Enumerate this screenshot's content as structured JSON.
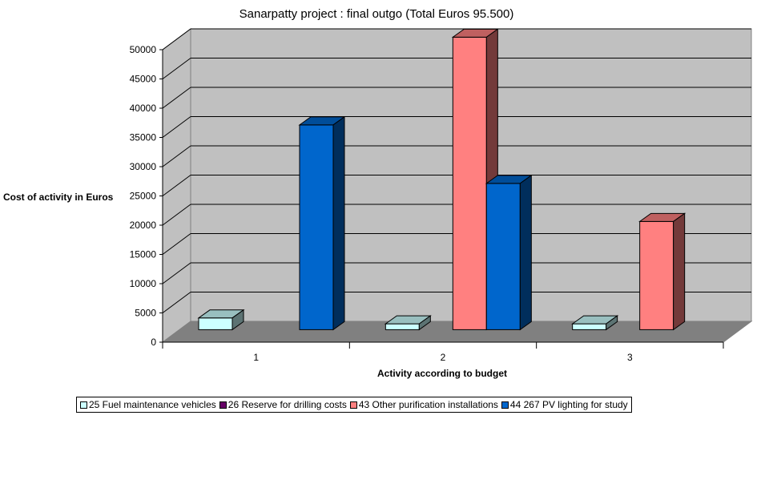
{
  "chart_data": {
    "type": "bar",
    "title": "Sanarpatty project : final outgo (Total Euros 95.500)",
    "xlabel": "Activity according to budget",
    "ylabel": "Cost of activity in Euros",
    "categories": [
      "1",
      "2",
      "3"
    ],
    "ylim": [
      0,
      50000
    ],
    "yticks": [
      0,
      5000,
      10000,
      15000,
      20000,
      25000,
      30000,
      35000,
      40000,
      45000,
      50000
    ],
    "grid": true,
    "legend_position": "bottom",
    "series": [
      {
        "name": "25 Fuel maintenance vehicles",
        "color": "#ccffff",
        "values": [
          2000,
          1000,
          1000
        ]
      },
      {
        "name": "26 Reserve for drilling costs",
        "color": "#660066",
        "values": [
          0,
          0,
          0
        ]
      },
      {
        "name": "43 Other purification installations",
        "color": "#ff8080",
        "values": [
          0,
          50000,
          18500
        ]
      },
      {
        "name": "44 267 PV lighting for study",
        "color": "#0066cc",
        "values": [
          35000,
          25000,
          0
        ]
      }
    ]
  }
}
